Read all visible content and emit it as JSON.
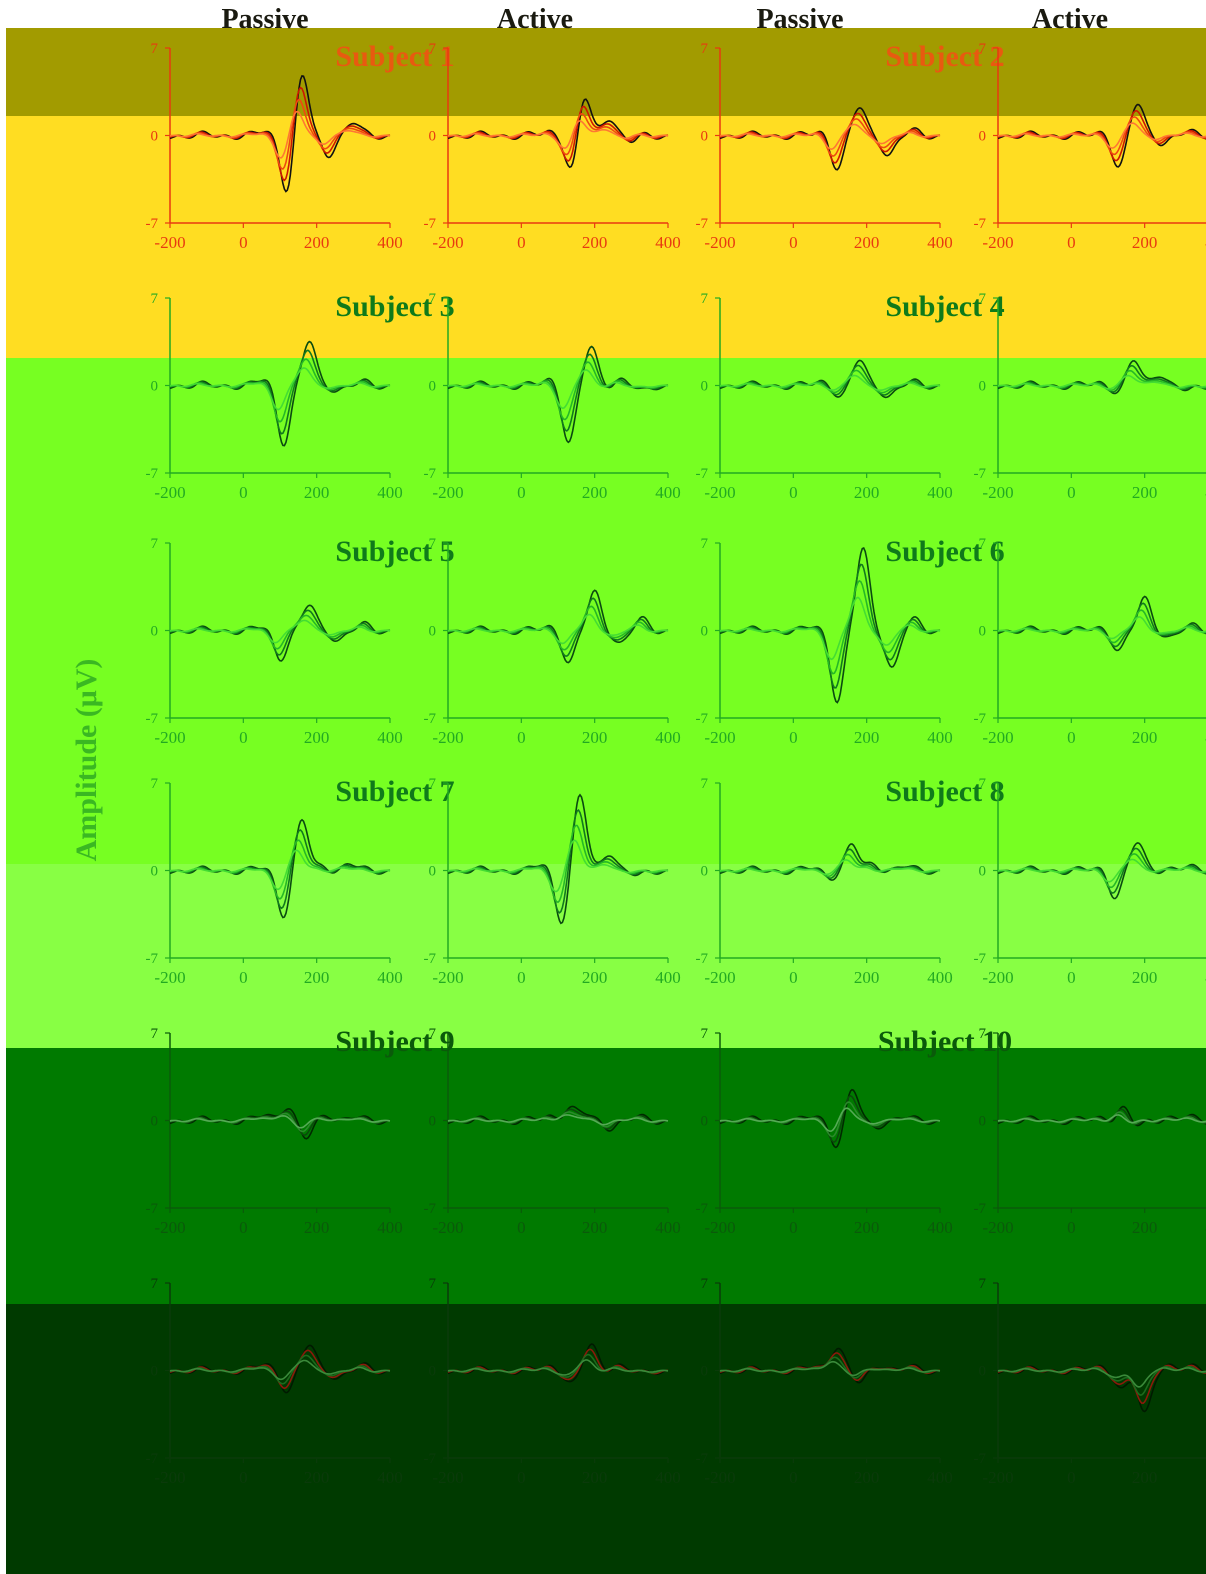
{
  "figure": {
    "column_headers": [
      "Passive",
      "Active",
      "Passive",
      "Active"
    ],
    "y_axis_label": "Amplitude (μV)"
  },
  "chart_data": {
    "type": "line",
    "units": {
      "x": "ms",
      "y": "μV"
    },
    "x_ticks": [
      -200,
      0,
      200,
      400
    ],
    "y_ticks": [
      -7,
      0,
      7
    ],
    "xlim": [
      -200,
      400
    ],
    "ylim": [
      -7,
      7
    ],
    "grid": false,
    "panels": [
      {
        "subject": "Subject 1",
        "palette": "red",
        "passive": {
          "peaks": [
            [
              60,
              0.3
            ],
            [
              120,
              -4.5
            ],
            [
              160,
              5.0
            ],
            [
              230,
              -1.5
            ],
            [
              300,
              1.0
            ]
          ]
        },
        "active": {
          "peaks": [
            [
              80,
              0.3
            ],
            [
              140,
              -3.2
            ],
            [
              170,
              3.5
            ],
            [
              240,
              1.5
            ],
            [
              300,
              -0.5
            ]
          ]
        }
      },
      {
        "subject": "Subject 2",
        "palette": "red",
        "passive": {
          "peaks": [
            [
              80,
              0.3
            ],
            [
              120,
              -2.5
            ],
            [
              180,
              2.2
            ],
            [
              260,
              -1.5
            ],
            [
              330,
              0.3
            ]
          ]
        },
        "active": {
          "peaks": [
            [
              90,
              0.3
            ],
            [
              130,
              -2.5
            ],
            [
              180,
              2.5
            ],
            [
              250,
              -0.5
            ],
            [
              320,
              0.2
            ]
          ]
        }
      },
      {
        "subject": "Subject 3",
        "palette": "green",
        "passive": {
          "peaks": [
            [
              60,
              0.5
            ],
            [
              110,
              -4.5
            ],
            [
              180,
              3.5
            ],
            [
              260,
              -0.3
            ],
            [
              330,
              0.2
            ]
          ]
        },
        "active": {
          "peaks": [
            [
              80,
              0.5
            ],
            [
              130,
              -4.5
            ],
            [
              190,
              3.0
            ],
            [
              270,
              0.5
            ],
            [
              330,
              -0.5
            ]
          ]
        }
      },
      {
        "subject": "Subject 4",
        "palette": "green",
        "passive": {
          "peaks": [
            [
              80,
              0.3
            ],
            [
              130,
              -0.8
            ],
            [
              180,
              2.0
            ],
            [
              260,
              -0.8
            ],
            [
              330,
              0.2
            ]
          ]
        },
        "active": {
          "peaks": [
            [
              80,
              0.2
            ],
            [
              130,
              -0.5
            ],
            [
              170,
              2.0
            ],
            [
              240,
              1.0
            ],
            [
              320,
              -0.5
            ]
          ]
        }
      },
      {
        "subject": "Subject 5",
        "palette": "green",
        "passive": {
          "peaks": [
            [
              60,
              0.3
            ],
            [
              100,
              -2.2
            ],
            [
              180,
              2.0
            ],
            [
              260,
              -0.7
            ],
            [
              330,
              0.4
            ]
          ]
        },
        "active": {
          "peaks": [
            [
              80,
              0.3
            ],
            [
              130,
              -2.5
            ],
            [
              200,
              3.0
            ],
            [
              270,
              -1.0
            ],
            [
              330,
              0.8
            ]
          ]
        }
      },
      {
        "subject": "Subject 6",
        "palette": "green",
        "passive": {
          "peaks": [
            [
              60,
              0.3
            ],
            [
              120,
              -5.5
            ],
            [
              190,
              6.5
            ],
            [
              270,
              -3.0
            ],
            [
              330,
              0.8
            ]
          ]
        },
        "active": {
          "peaks": [
            [
              80,
              0.2
            ],
            [
              130,
              -1.5
            ],
            [
              200,
              2.5
            ],
            [
              270,
              -0.5
            ],
            [
              330,
              0.3
            ]
          ]
        }
      },
      {
        "subject": "Subject 7",
        "palette": "green",
        "passive": {
          "peaks": [
            [
              60,
              0.2
            ],
            [
              110,
              -3.5
            ],
            [
              160,
              4.0
            ],
            [
              220,
              0.3
            ],
            [
              290,
              0.5
            ]
          ]
        },
        "active": {
          "peaks": [
            [
              60,
              0.5
            ],
            [
              110,
              -4.0
            ],
            [
              160,
              6.0
            ],
            [
              240,
              1.5
            ],
            [
              320,
              -0.5
            ]
          ]
        }
      },
      {
        "subject": "Subject 8",
        "palette": "green",
        "passive": {
          "peaks": [
            [
              60,
              0.2
            ],
            [
              100,
              -0.5
            ],
            [
              160,
              2.0
            ],
            [
              220,
              0.5
            ],
            [
              300,
              0.3
            ]
          ]
        },
        "active": {
          "peaks": [
            [
              80,
              0.2
            ],
            [
              120,
              -2.0
            ],
            [
              180,
              2.2
            ],
            [
              260,
              0.2
            ],
            [
              320,
              0.2
            ]
          ]
        }
      },
      {
        "subject": "Subject 9",
        "palette": "dark",
        "passive": {
          "peaks": [
            [
              60,
              0.4
            ],
            [
              120,
              1.2
            ],
            [
              170,
              -1.5
            ],
            [
              230,
              0.5
            ],
            [
              300,
              0.2
            ]
          ]
        },
        "active": {
          "peaks": [
            [
              80,
              0.3
            ],
            [
              130,
              1.0
            ],
            [
              170,
              0.5
            ],
            [
              240,
              -0.5
            ],
            [
              320,
              0.2
            ]
          ]
        }
      },
      {
        "subject": "Subject 10",
        "palette": "dark",
        "passive": {
          "peaks": [
            [
              60,
              0.3
            ],
            [
              120,
              -2.0
            ],
            [
              160,
              2.5
            ],
            [
              220,
              -0.5
            ],
            [
              300,
              0.2
            ]
          ]
        },
        "active": {
          "peaks": [
            [
              80,
              0.2
            ],
            [
              140,
              1.0
            ],
            [
              180,
              -0.5
            ],
            [
              260,
              0.3
            ],
            [
              320,
              0.2
            ]
          ]
        }
      },
      {
        "subject": "",
        "palette": "darkest",
        "passive": {
          "peaks": [
            [
              60,
              0.5
            ],
            [
              120,
              -1.5
            ],
            [
              180,
              2.0
            ],
            [
              260,
              -0.5
            ],
            [
              330,
              0.3
            ]
          ]
        },
        "active": {
          "peaks": [
            [
              80,
              0.3
            ],
            [
              140,
              -1.0
            ],
            [
              190,
              2.0
            ],
            [
              260,
              0.5
            ],
            [
              330,
              -0.3
            ]
          ]
        }
      },
      {
        "subject": "",
        "palette": "darkest",
        "passive": {
          "peaks": [
            [
              60,
              0.3
            ],
            [
              120,
              2.0
            ],
            [
              180,
              -1.0
            ],
            [
              240,
              0.5
            ],
            [
              320,
              0.2
            ]
          ]
        },
        "active": {
          "peaks": [
            [
              80,
              0.3
            ],
            [
              140,
              -1.5
            ],
            [
              200,
              -3.5
            ],
            [
              260,
              0.5
            ],
            [
              330,
              0.2
            ]
          ]
        }
      }
    ]
  }
}
